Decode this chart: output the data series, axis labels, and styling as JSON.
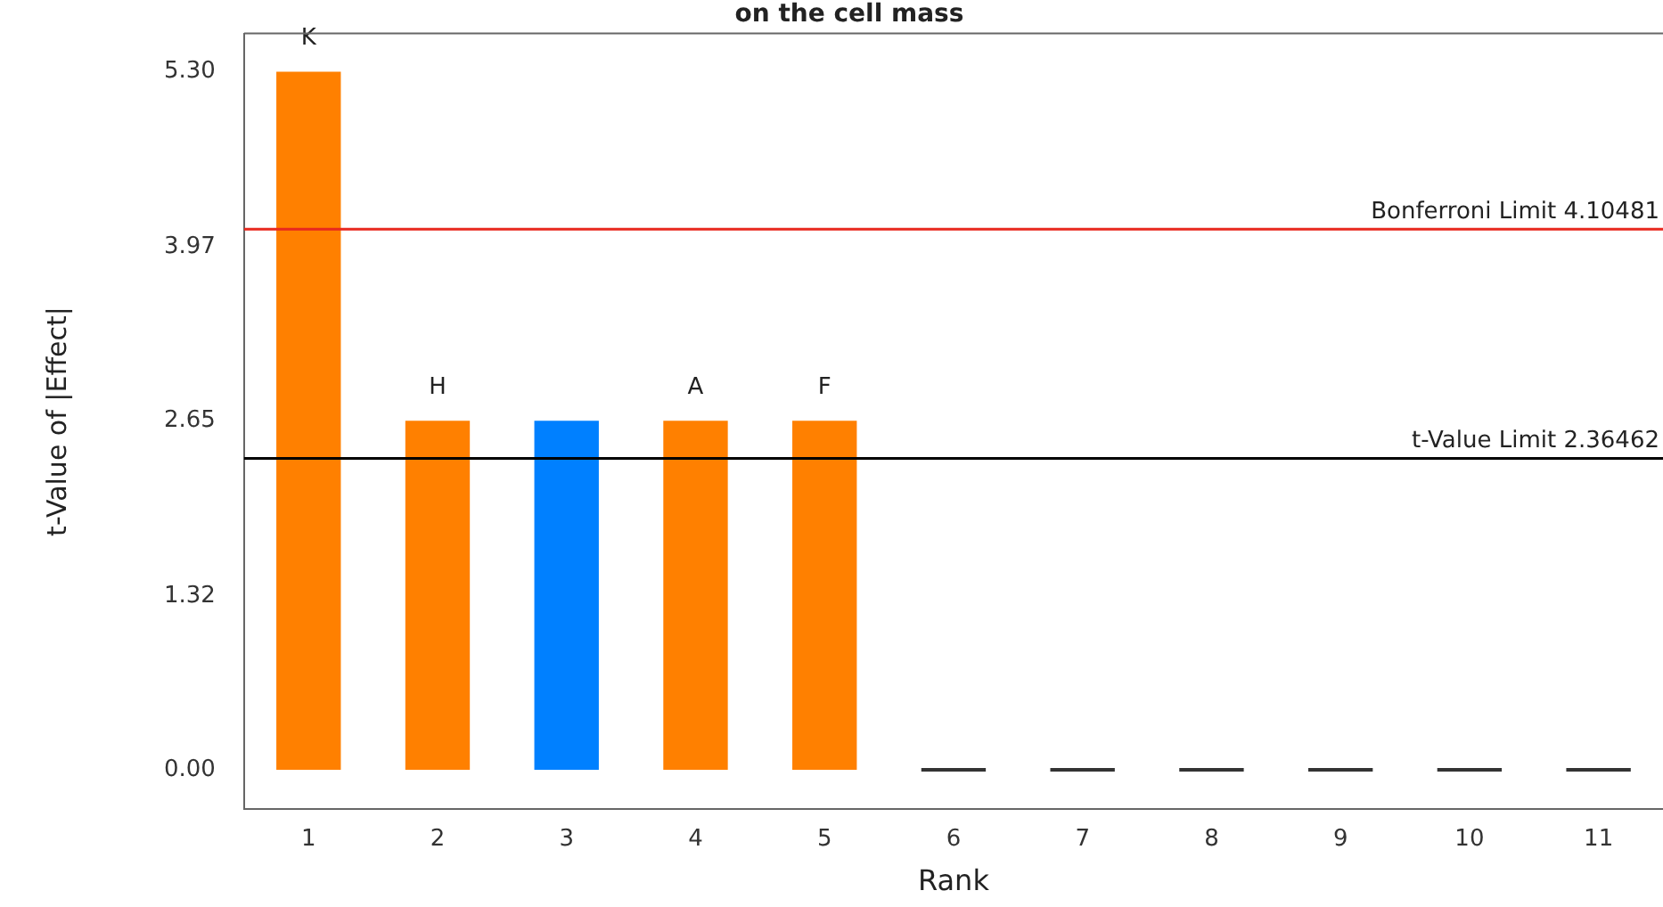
{
  "chart_data": {
    "type": "bar",
    "title": "on the cell mass",
    "xlabel": "Rank",
    "ylabel": "t-Value of |Effect|",
    "categories": [
      "1",
      "2",
      "3",
      "4",
      "5",
      "6",
      "7",
      "8",
      "9",
      "10",
      "11"
    ],
    "values": [
      5.3,
      2.65,
      2.65,
      2.65,
      2.65,
      0,
      0,
      0,
      0,
      0,
      0
    ],
    "colors": [
      "#ff8000",
      "#ff8000",
      "#0080ff",
      "#ff8000",
      "#ff8000",
      "#333333",
      "#333333",
      "#333333",
      "#333333",
      "#333333",
      "#333333"
    ],
    "ylim": [
      -0.3,
      5.59
    ],
    "yticks": [
      {
        "value": 0,
        "label": "0.00"
      },
      1.32,
      2.65,
      3.97,
      {
        "value": 5.3,
        "label": "5.30"
      }
    ],
    "ref_lines": [
      {
        "axis": "y",
        "value": 4.10481,
        "label": "Bonferroni Limit 4.10481",
        "color": "#e8281e"
      },
      {
        "axis": "y",
        "value": 2.36462,
        "label": "t-Value Limit 2.36462",
        "color": "#000000"
      }
    ],
    "annotations": [
      {
        "text": "K",
        "x": "1",
        "y": 5.3
      },
      {
        "text": "H",
        "x": "2",
        "y": 2.65
      },
      {
        "text": "A",
        "x": "4",
        "y": 2.65
      },
      {
        "text": "F",
        "x": "5",
        "y": 2.65
      }
    ],
    "grid": false,
    "legend": false
  }
}
